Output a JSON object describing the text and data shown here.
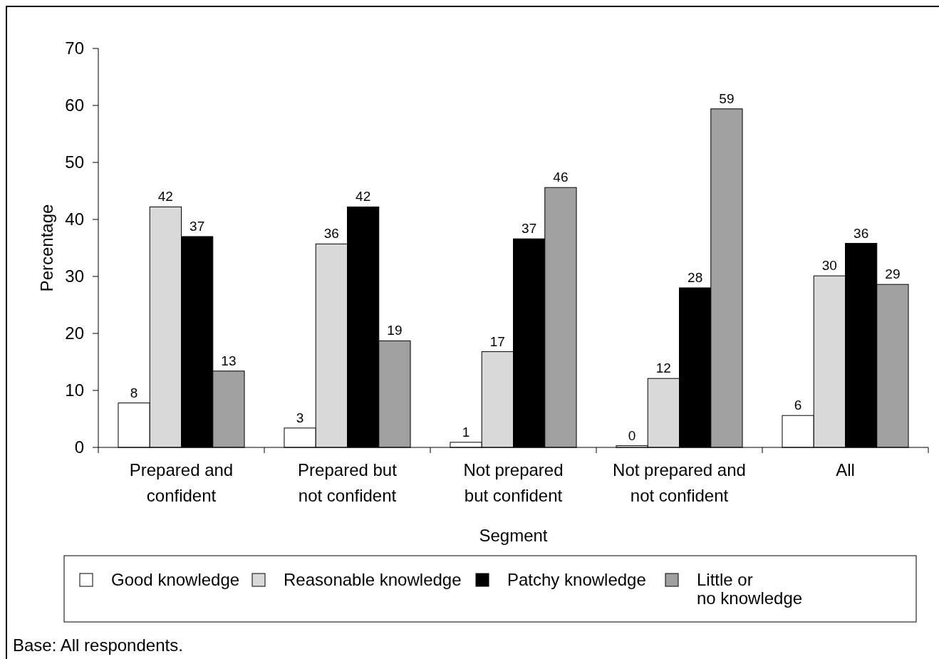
{
  "chart_data": {
    "type": "bar",
    "xlabel": "Segment",
    "ylabel": "Percentage",
    "categories": [
      "Prepared and confident",
      "Prepared but not confident",
      "Not prepared but confident",
      "Not prepared and not confident",
      "All"
    ],
    "series": [
      {
        "name": "Good knowledge",
        "color": "#ffffff",
        "values": [
          7.8,
          3.4,
          0.9,
          0.3,
          5.6
        ],
        "value_labels": [
          "8",
          "3",
          "1",
          "0",
          "6"
        ]
      },
      {
        "name": "Reasonable knowledge",
        "color": "#d9d9d9",
        "values": [
          42.2,
          35.7,
          16.8,
          12.1,
          30.1
        ],
        "value_labels": [
          "42",
          "36",
          "17",
          "12",
          "30"
        ]
      },
      {
        "name": "Patchy knowledge",
        "color": "#000000",
        "values": [
          37,
          42.2,
          36.6,
          28,
          35.8
        ],
        "value_labels": [
          "37",
          "42",
          "37",
          "28",
          "36"
        ]
      },
      {
        "name": "Little or no knowledge",
        "color": "#a0a0a0",
        "values": [
          13.4,
          18.7,
          45.6,
          59.4,
          28.6
        ],
        "value_labels": [
          "13",
          "19",
          "46",
          "59",
          "29"
        ]
      }
    ],
    "ylim": [
      0,
      70
    ],
    "yticks": [
      0,
      10,
      20,
      30,
      40,
      50,
      60,
      70
    ],
    "legend": "bottom",
    "annotations": [
      "Base: All respondents."
    ]
  }
}
